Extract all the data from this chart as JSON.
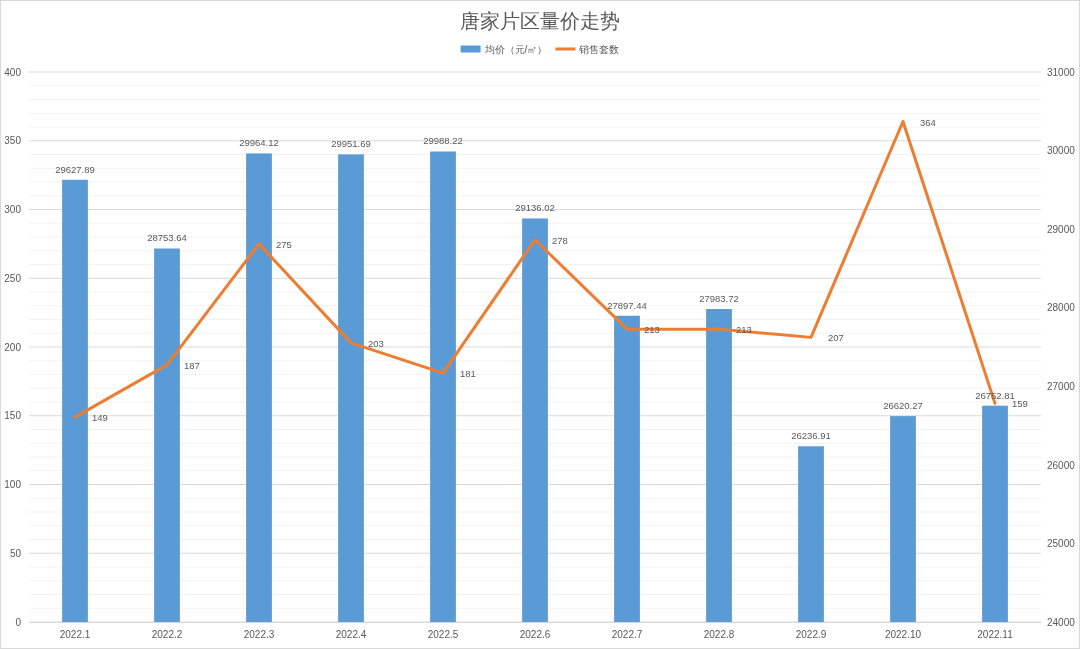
{
  "chart_data": {
    "type": "bar",
    "title": "唐家片区量价走势",
    "categories": [
      "2022.1",
      "2022.2",
      "2022.3",
      "2022.4",
      "2022.5",
      "2022.6",
      "2022.7",
      "2022.8",
      "2022.9",
      "2022.10",
      "2022.11"
    ],
    "series": [
      {
        "name": "均价（元/㎡）",
        "axis": "y2",
        "color": "#5b9bd5",
        "values": [
          29627.89,
          28753.64,
          29964.12,
          29951.69,
          29988.22,
          29136.02,
          27897.44,
          27983.72,
          26236.91,
          26620.27,
          26752.81
        ]
      },
      {
        "name": "销售套数",
        "type": "line",
        "color": "#ed7d31",
        "values": [
          149,
          187,
          275,
          203,
          181,
          278,
          213,
          213,
          207,
          364,
          159
        ]
      }
    ],
    "ylim": [
      0,
      400
    ],
    "yticks": [
      0,
      {
        "value": 10,
        "label": null
      },
      {
        "value": 20,
        "label": null
      },
      {
        "value": 30,
        "label": null
      },
      {
        "value": 40,
        "label": null
      },
      50,
      {
        "value": 60,
        "label": null
      },
      {
        "value": 70,
        "label": null
      },
      {
        "value": 80,
        "label": null
      },
      {
        "value": 90,
        "label": null
      },
      100,
      {
        "value": 110,
        "label": null
      },
      {
        "value": 120,
        "label": null
      },
      {
        "value": 130,
        "label": null
      },
      {
        "value": 140,
        "label": null
      },
      150,
      {
        "value": 160,
        "label": null
      },
      {
        "value": 170,
        "label": null
      },
      {
        "value": 180,
        "label": null
      },
      {
        "value": 190,
        "label": null
      },
      200,
      {
        "value": 210,
        "label": null
      },
      {
        "value": 220,
        "label": null
      },
      {
        "value": 230,
        "label": null
      },
      {
        "value": 240,
        "label": null
      },
      250,
      {
        "value": 260,
        "label": null
      },
      {
        "value": 270,
        "label": null
      },
      {
        "value": 280,
        "label": null
      },
      {
        "value": 290,
        "label": null
      },
      300,
      {
        "value": 310,
        "label": null
      },
      {
        "value": 320,
        "label": null
      },
      {
        "value": 330,
        "label": null
      },
      {
        "value": 340,
        "label": null
      },
      350,
      {
        "value": 360,
        "label": null
      },
      {
        "value": 370,
        "label": null
      },
      {
        "value": 380,
        "label": null
      },
      {
        "value": 390,
        "label": null
      },
      400
    ],
    "y2lim": [
      24000,
      31000
    ],
    "y2ticks": [
      24000,
      25000,
      26000,
      27000,
      28000,
      29000,
      30000,
      31000
    ],
    "grid": "y",
    "legend": "top",
    "data_labels": true
  }
}
